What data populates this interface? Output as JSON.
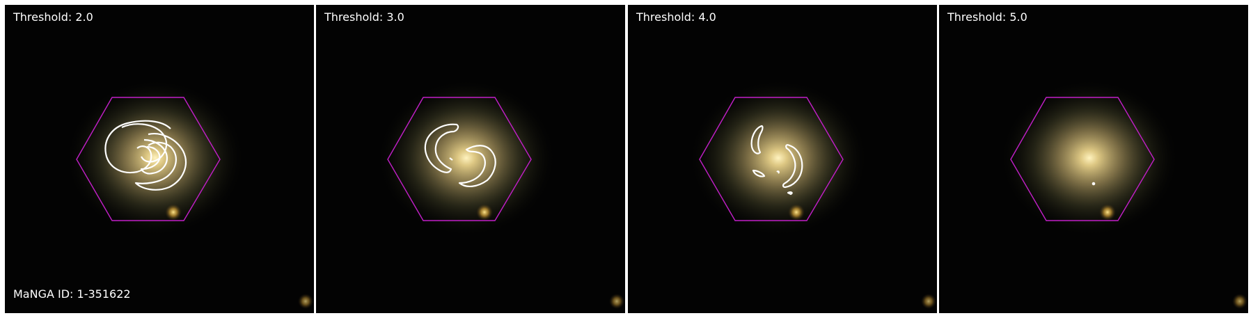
{
  "panels": [
    {
      "label": "Threshold: 2.0",
      "contour_level": "2"
    },
    {
      "label": "Threshold: 3.0",
      "contour_level": "3"
    },
    {
      "label": "Threshold: 4.0",
      "contour_level": "4"
    },
    {
      "label": "Threshold: 5.0",
      "contour_level": "5"
    }
  ],
  "manga_id": "MaNGA ID: 1-351622",
  "colors": {
    "background": "#030303",
    "hexagon": "#c21fc8",
    "contour": "#ffffff",
    "text": "#ffffff",
    "galaxy_core": "#fff1b0",
    "galaxy_halo": "#c8b176"
  },
  "icons": [
    "ifu-hexagon",
    "spiral-galaxy",
    "companion-star",
    "arm-contour"
  ]
}
